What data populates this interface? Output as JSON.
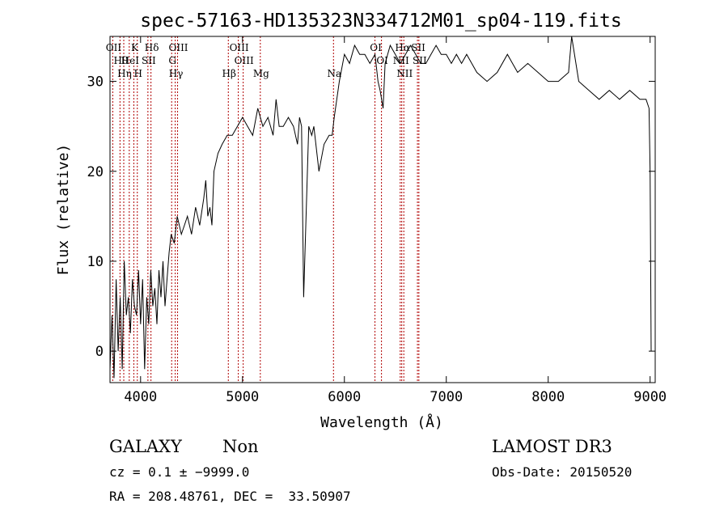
{
  "chart_data": {
    "type": "line",
    "title": "spec-57163-HD135323N334712M01_sp04-119.fits",
    "xlabel": "Wavelength (Å)",
    "ylabel": "Flux (relative)",
    "xlim": [
      3700,
      9050
    ],
    "ylim": [
      -3.5,
      35
    ],
    "x_ticks": [
      4000,
      5000,
      6000,
      7000,
      8000,
      9000
    ],
    "y_ticks": [
      0,
      10,
      20,
      30
    ],
    "grid": false,
    "series": [
      {
        "x": [
          3700,
          3720,
          3740,
          3760,
          3780,
          3800,
          3820,
          3840,
          3860,
          3880,
          3900,
          3920,
          3940,
          3960,
          3980,
          4000,
          4020,
          4040,
          4060,
          4080,
          4100,
          4120,
          4140,
          4160,
          4180,
          4200,
          4220,
          4240,
          4260,
          4280,
          4300,
          4330,
          4360,
          4400,
          4430,
          4460,
          4500,
          4540,
          4580,
          4620,
          4640,
          4660,
          4680,
          4700,
          4720,
          4760,
          4800,
          4850,
          4900,
          5000,
          5050,
          5100,
          5150,
          5200,
          5250,
          5300,
          5330,
          5360,
          5400,
          5450,
          5500,
          5540,
          5560,
          5580,
          5600,
          5650,
          5680,
          5700,
          5750,
          5800,
          5850,
          5880,
          5900,
          5950,
          6000,
          6050,
          6100,
          6150,
          6200,
          6250,
          6300,
          6330,
          6350,
          6380,
          6400,
          6450,
          6500,
          6550,
          6600,
          6650,
          6700,
          6750,
          6800,
          6850,
          6900,
          6950,
          7000,
          7050,
          7100,
          7150,
          7200,
          7250,
          7300,
          7400,
          7500,
          7600,
          7700,
          7800,
          7900,
          8000,
          8100,
          8200,
          8230,
          8300,
          8400,
          8500,
          8600,
          8700,
          8800,
          8900,
          8960,
          8990,
          9000,
          9010
        ],
        "y": [
          -2,
          4,
          -3,
          8,
          0,
          6,
          -2,
          10,
          4,
          6,
          2,
          8,
          5,
          4,
          9,
          3,
          8,
          -2,
          6,
          3,
          9,
          5,
          7,
          3,
          9,
          6,
          10,
          5,
          8,
          11,
          13,
          12,
          15,
          13,
          14,
          15,
          13,
          16,
          14,
          17,
          19,
          15,
          16,
          14,
          20,
          22,
          23,
          24,
          24,
          26,
          25,
          24,
          27,
          25,
          26,
          24,
          28,
          25,
          25,
          26,
          25,
          23,
          26,
          25,
          6,
          25,
          24,
          25,
          20,
          23,
          24,
          24,
          26,
          30,
          33,
          32,
          34,
          33,
          33,
          32,
          33,
          30,
          29,
          27,
          32,
          34,
          33,
          32,
          33,
          34,
          33,
          32,
          32,
          33,
          34,
          33,
          33,
          32,
          33,
          32,
          33,
          32,
          31,
          30,
          31,
          33,
          31,
          32,
          31,
          30,
          30,
          31,
          35,
          30,
          29,
          28,
          29,
          28,
          29,
          28,
          28,
          27,
          20,
          0
        ]
      }
    ],
    "emission_lines": [
      {
        "label": "OII",
        "x": 3727
      },
      {
        "label": "Hθ",
        "x": 3798
      },
      {
        "label": "Hη",
        "x": 3835
      },
      {
        "label": "K",
        "x": 3934
      },
      {
        "label": "HeI",
        "x": 3889
      },
      {
        "label": "H",
        "x": 3968
      },
      {
        "label": "Hδ",
        "x": 4102
      },
      {
        "label": "SII",
        "x": 4072
      },
      {
        "label": "Hγ",
        "x": 4340
      },
      {
        "label": "OIII",
        "x": 4363
      },
      {
        "label": "G",
        "x": 4305
      },
      {
        "label": "Hβ",
        "x": 4861
      },
      {
        "label": "OIII",
        "x": 4959
      },
      {
        "label": "OIII",
        "x": 5007
      },
      {
        "label": "Mg",
        "x": 5175
      },
      {
        "label": "OI",
        "x": 6300
      },
      {
        "label": "OI",
        "x": 6364
      },
      {
        "label": "Na",
        "x": 5893
      },
      {
        "label": "Hα",
        "x": 6563
      },
      {
        "label": "NII",
        "x": 6548
      },
      {
        "label": "NII",
        "x": 6583
      },
      {
        "label": "SII",
        "x": 6717
      },
      {
        "label": "SII",
        "x": 6731
      }
    ]
  },
  "info": {
    "class": "GALAXY",
    "subclass": "Non",
    "survey": "LAMOST DR3",
    "cz": "cz = 0.1 ± −9999.0",
    "obs_date": "Obs-Date: 20150520",
    "radec": "RA = 208.48761, DEC =  33.50907"
  },
  "colors": {
    "spectrum": "#000000",
    "lines": "#b00000"
  }
}
